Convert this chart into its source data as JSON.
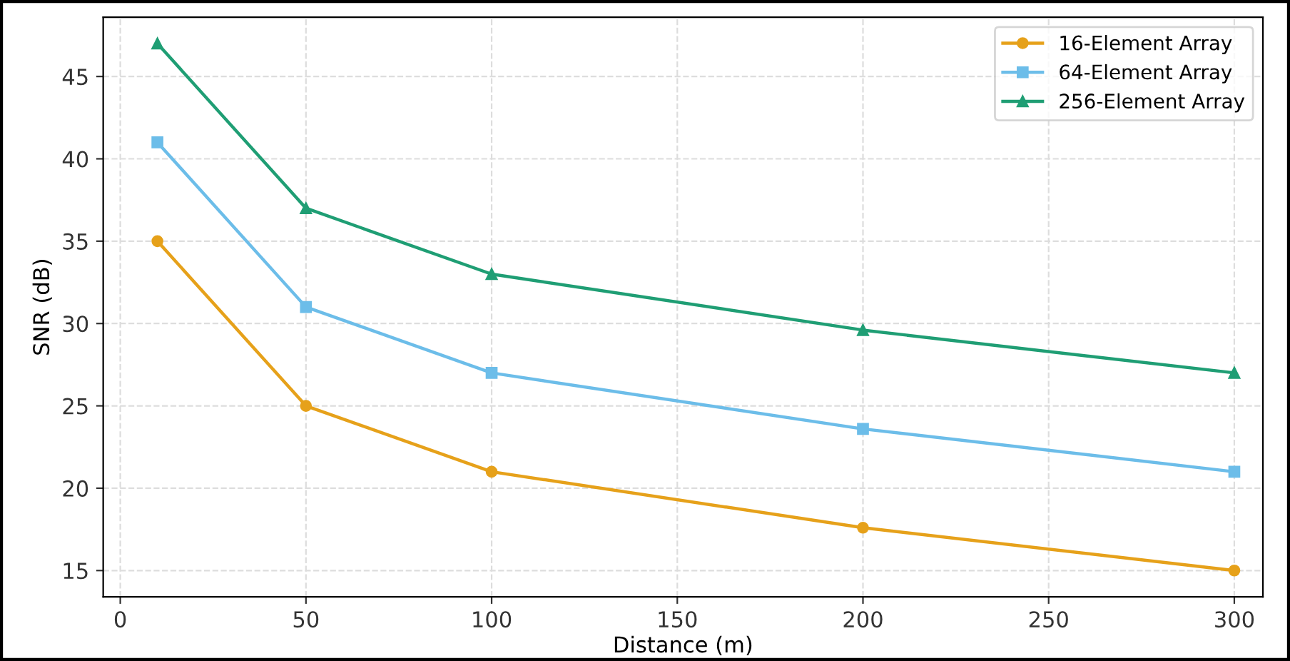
{
  "chart_data": {
    "type": "line",
    "xlabel": "Distance (m)",
    "ylabel": "SNR (dB)",
    "x": [
      10,
      50,
      100,
      200,
      300
    ],
    "series": [
      {
        "name": "16-Element Array",
        "color": "#e6a11a",
        "marker": "circle",
        "values": [
          35,
          25,
          21,
          17.6,
          15
        ]
      },
      {
        "name": "64-Element Array",
        "color": "#6cbde9",
        "marker": "square",
        "values": [
          41,
          31,
          27,
          23.6,
          21
        ]
      },
      {
        "name": "256-Element Array",
        "color": "#1f9e74",
        "marker": "triangle",
        "values": [
          47,
          37,
          33,
          29.6,
          27
        ]
      }
    ],
    "xlim": [
      -4.6,
      307.7
    ],
    "xticks": [
      0,
      50,
      100,
      150,
      200,
      250,
      300
    ],
    "ylim": [
      13.4,
      48.6
    ],
    "yticks": [
      15,
      20,
      25,
      30,
      35,
      40,
      45
    ],
    "grid": true,
    "legend": "top right",
    "line_style": "solid"
  }
}
